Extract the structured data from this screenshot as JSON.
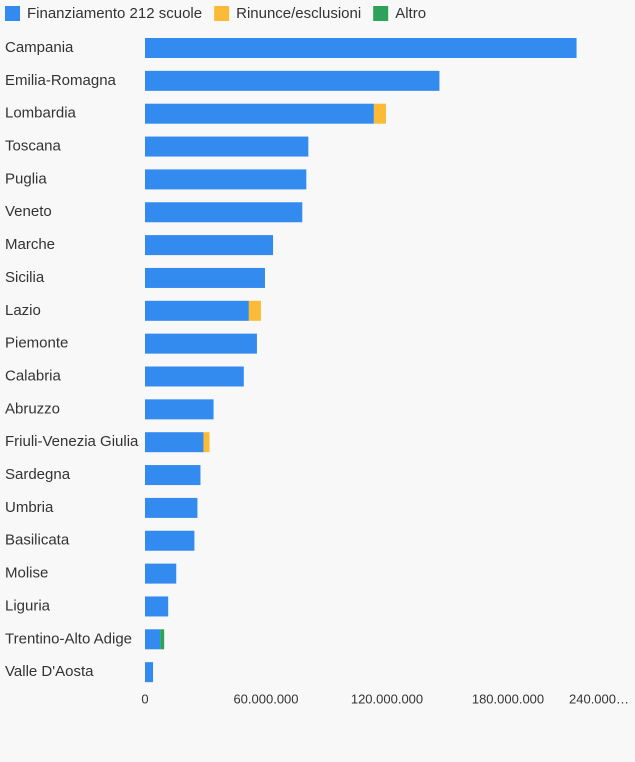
{
  "chart_data": {
    "type": "stacked_hbar",
    "categories": [
      "Campania",
      "Emilia-Romagna",
      "Lombardia",
      "Toscana",
      "Puglia",
      "Veneto",
      "Marche",
      "Sicilia",
      "Lazio",
      "Piemonte",
      "Calabria",
      "Abruzzo",
      "Friuli-Venezia Giulia",
      "Sardegna",
      "Umbria",
      "Basilicata",
      "Molise",
      "Liguria",
      "Trentino-Alto Adige",
      "Valle D'Aosta"
    ],
    "series": [
      {
        "name": "Finanziamento 212 scuole",
        "color": "#338bef",
        "values": [
          214000000,
          146000000,
          113500000,
          81000000,
          80000000,
          78000000,
          63500000,
          59500000,
          51500000,
          55500000,
          49000000,
          34000000,
          29000000,
          27500000,
          26000000,
          24500000,
          15500000,
          11500000,
          7500000,
          4000000
        ]
      },
      {
        "name": "Rinunce/esclusioni",
        "color": "#fbbb37",
        "values": [
          0,
          0,
          6000000,
          0,
          0,
          0,
          0,
          0,
          6000000,
          0,
          0,
          0,
          3000000,
          0,
          0,
          0,
          0,
          0,
          0,
          0
        ]
      },
      {
        "name": "Altro",
        "color": "#2fa25a",
        "values": [
          0,
          0,
          0,
          0,
          0,
          0,
          0,
          0,
          0,
          0,
          0,
          0,
          0,
          0,
          0,
          0,
          0,
          0,
          2000000,
          0
        ]
      }
    ],
    "xlim": [
      0,
      240000000
    ],
    "xticks": [
      0,
      {
        "value": 60000000,
        "label": "60.000.000"
      },
      {
        "value": 120000000,
        "label": "120.000.000"
      },
      {
        "value": 180000000,
        "label": "180.000.000"
      },
      {
        "value": 240000000,
        "label": "240.000…"
      }
    ],
    "grid": false
  }
}
